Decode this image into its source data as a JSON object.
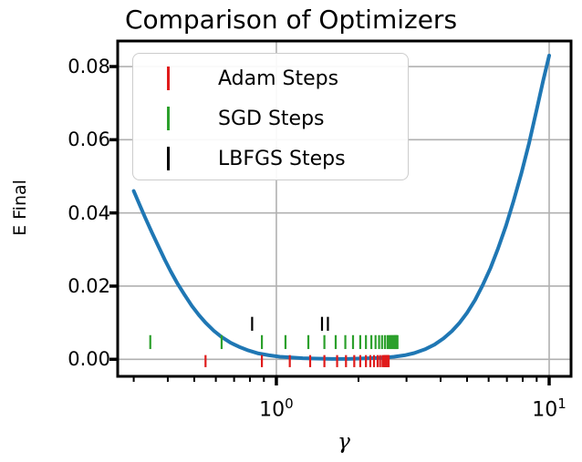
{
  "figure": {
    "title": "Comparison of Optimizers",
    "xlabel": "γ",
    "ylabel": "E Final"
  },
  "chart_data": {
    "type": "line",
    "title": "Comparison of Optimizers",
    "xlabel": "γ",
    "ylabel": "E Final",
    "x_scale": "log",
    "xlim": [
      0.262,
      12.03
    ],
    "ylim": [
      -0.00466,
      0.08698
    ],
    "grid": true,
    "grid_color": "#b0b0b0",
    "axis_color": "#000000",
    "y_ticks": [
      {
        "label": "0.00",
        "value": 0.0
      },
      {
        "label": "0.02",
        "value": 0.02
      },
      {
        "label": "0.04",
        "value": 0.04
      },
      {
        "label": "0.06",
        "value": 0.06
      },
      {
        "label": "0.08",
        "value": 0.08
      }
    ],
    "x_major_ticks": [
      {
        "base": "10",
        "exp": "0",
        "value": 1
      },
      {
        "base": "10",
        "exp": "1",
        "value": 10
      }
    ],
    "x_minor_ticks": [
      0.3,
      0.4,
      0.5,
      0.6,
      0.7,
      0.8,
      0.9,
      2,
      3,
      4,
      5,
      6,
      7,
      8,
      9
    ],
    "series": [
      {
        "name": "E_final_curve",
        "color": "#1f77b4",
        "linewidth": 4,
        "points": [
          [
            0.3,
            0.046
          ],
          [
            0.315,
            0.0423
          ],
          [
            0.33,
            0.0388
          ],
          [
            0.35,
            0.0346
          ],
          [
            0.37,
            0.0308
          ],
          [
            0.39,
            0.0272
          ],
          [
            0.41,
            0.024
          ],
          [
            0.435,
            0.0206
          ],
          [
            0.46,
            0.0177
          ],
          [
            0.49,
            0.0146
          ],
          [
            0.52,
            0.0121
          ],
          [
            0.55,
            0.01
          ],
          [
            0.59,
            0.0078
          ],
          [
            0.63,
            0.0061
          ],
          [
            0.68,
            0.0045
          ],
          [
            0.73,
            0.0034
          ],
          [
            0.79,
            0.0024
          ],
          [
            0.86,
            0.0016
          ],
          [
            0.94,
            0.0011
          ],
          [
            1.03,
            0.0007
          ],
          [
            1.13,
            0.0005
          ],
          [
            1.25,
            0.0003
          ],
          [
            1.4,
            0.0002
          ],
          [
            1.6,
            0.0001
          ],
          [
            1.8,
            0.0001
          ],
          [
            2.0,
            0.0002
          ],
          [
            2.2,
            0.0003
          ],
          [
            2.45,
            0.0004
          ],
          [
            2.7,
            0.0007
          ],
          [
            2.95,
            0.0011
          ],
          [
            3.2,
            0.0017
          ],
          [
            3.5,
            0.0027
          ],
          [
            3.8,
            0.004
          ],
          [
            4.1,
            0.0057
          ],
          [
            4.4,
            0.0077
          ],
          [
            4.7,
            0.01
          ],
          [
            5.0,
            0.0127
          ],
          [
            5.35,
            0.0162
          ],
          [
            5.7,
            0.0202
          ],
          [
            6.1,
            0.025
          ],
          [
            6.5,
            0.0303
          ],
          [
            6.95,
            0.0365
          ],
          [
            7.4,
            0.0432
          ],
          [
            7.9,
            0.0507
          ],
          [
            8.45,
            0.0592
          ],
          [
            9.0,
            0.0682
          ],
          [
            9.5,
            0.076
          ],
          [
            10.0,
            0.083
          ]
        ]
      }
    ],
    "event_series": [
      {
        "name": "Adam Steps",
        "color": "#e01b1b",
        "offset": -0.0005,
        "halflength": 0.00165,
        "gammas": [
          0.55,
          0.885,
          1.12,
          1.33,
          1.5,
          1.67,
          1.8,
          1.93,
          2.03,
          2.13,
          2.21,
          2.28,
          2.35,
          2.4,
          2.45,
          2.48,
          2.5,
          2.52,
          2.54,
          2.555,
          2.57,
          2.58
        ]
      },
      {
        "name": "SGD Steps",
        "color": "#2ca02c",
        "offset": 0.0047,
        "halflength": 0.0019,
        "gammas": [
          0.345,
          0.63,
          0.885,
          1.08,
          1.31,
          1.5,
          1.65,
          1.79,
          1.91,
          2.03,
          2.13,
          2.23,
          2.31,
          2.38,
          2.44,
          2.5,
          2.555,
          2.59,
          2.62,
          2.65,
          2.67,
          2.7,
          2.72,
          2.74,
          2.76,
          2.78
        ]
      },
      {
        "name": "LBFGS Steps",
        "color": "#000000",
        "offset": 0.0097,
        "halflength": 0.0019,
        "gammas": [
          0.815,
          1.47,
          1.545
        ]
      }
    ],
    "legend": {
      "position": "upper left",
      "items": [
        {
          "label": "Adam Steps",
          "color": "#e01b1b"
        },
        {
          "label": "SGD Steps",
          "color": "#2ca02c"
        },
        {
          "label": "LBFGS Steps",
          "color": "#000000"
        }
      ]
    }
  }
}
